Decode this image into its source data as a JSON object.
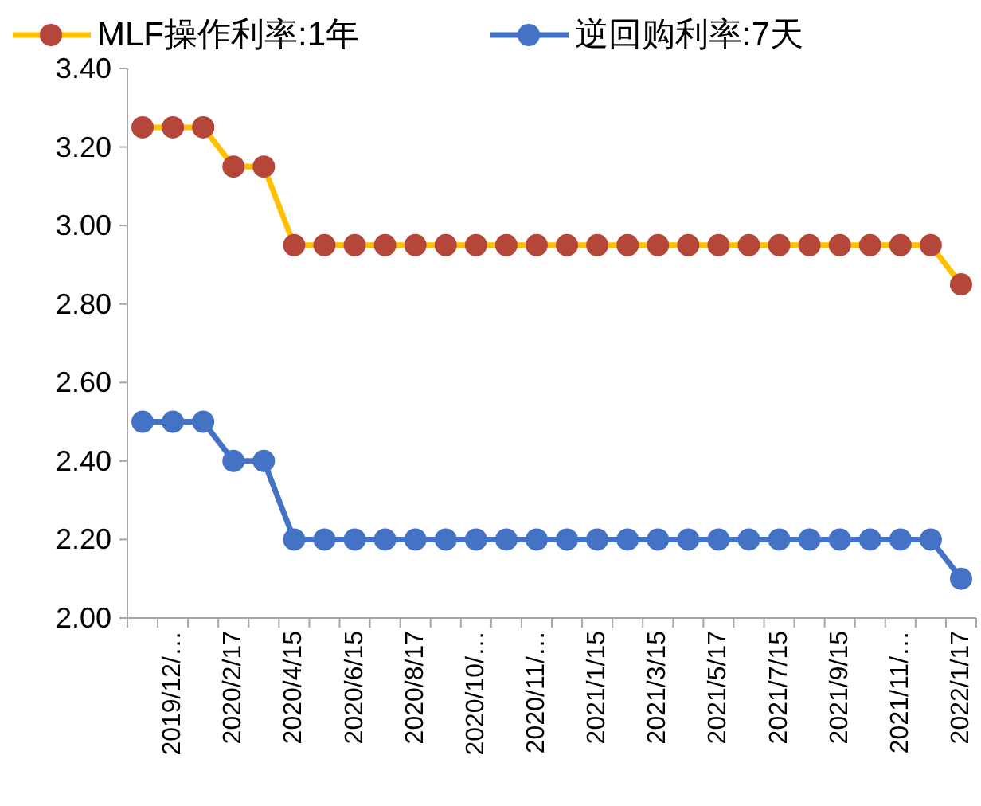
{
  "chart_data": {
    "type": "line",
    "categories": [
      null,
      "2019/12/…",
      null,
      "2020/2/17",
      null,
      "2020/4/15",
      null,
      "2020/6/15",
      null,
      "2020/8/17",
      null,
      "2020/10/…",
      null,
      "2020/11/…",
      null,
      "2021/1/15",
      null,
      "2021/3/15",
      null,
      "2021/5/17",
      null,
      "2021/7/15",
      null,
      "2021/9/15",
      null,
      "2021/11/…",
      null,
      "2022/1/17"
    ],
    "series": [
      {
        "name": "MLF操作利率:1年",
        "color": "#ffc000",
        "colors": [
          "#b5473a",
          "#b5473a",
          "#b5473a",
          "#b5473a",
          "#b5473a",
          "#b5473a",
          "#b5473a",
          "#b5473a",
          "#b5473a",
          "#b5473a",
          "#b5473a",
          "#b5473a",
          "#b5473a",
          "#b5473a",
          "#b5473a",
          "#b5473a",
          "#b5473a",
          "#b5473a",
          "#b5473a",
          "#b5473a",
          "#b5473a",
          "#b5473a",
          "#b5473a",
          "#b5473a",
          "#b5473a",
          "#b5473a",
          "#b5473a",
          "#b5473a"
        ],
        "values": [
          3.25,
          3.25,
          3.25,
          3.15,
          3.15,
          2.95,
          2.95,
          2.95,
          2.95,
          2.95,
          2.95,
          2.95,
          2.95,
          2.95,
          2.95,
          2.95,
          2.95,
          2.95,
          2.95,
          2.95,
          2.95,
          2.95,
          2.95,
          2.95,
          2.95,
          2.95,
          2.95,
          2.85
        ]
      },
      {
        "name": "逆回购利率:7天",
        "color": "#4472c4",
        "values": [
          2.5,
          2.5,
          2.5,
          2.4,
          2.4,
          2.2,
          2.2,
          2.2,
          2.2,
          2.2,
          2.2,
          2.2,
          2.2,
          2.2,
          2.2,
          2.2,
          2.2,
          2.2,
          2.2,
          2.2,
          2.2,
          2.2,
          2.2,
          2.2,
          2.2,
          2.2,
          2.2,
          2.1
        ]
      }
    ],
    "ylim": [
      2,
      3.4
    ],
    "yticks": [
      {
        "value": 2,
        "label": "2.00"
      },
      {
        "value": 2.2,
        "label": "2.20"
      },
      {
        "value": 2.4,
        "label": "2.40"
      },
      {
        "value": 2.6,
        "label": "2.60"
      },
      {
        "value": 2.8,
        "label": "2.80"
      },
      {
        "value": 3,
        "label": "3.00"
      },
      {
        "value": 3.2,
        "label": "3.20"
      },
      {
        "value": 3.4,
        "label": "3.40"
      }
    ],
    "grid": false,
    "legend": "top",
    "marker": "circle",
    "line_style": "solid"
  }
}
